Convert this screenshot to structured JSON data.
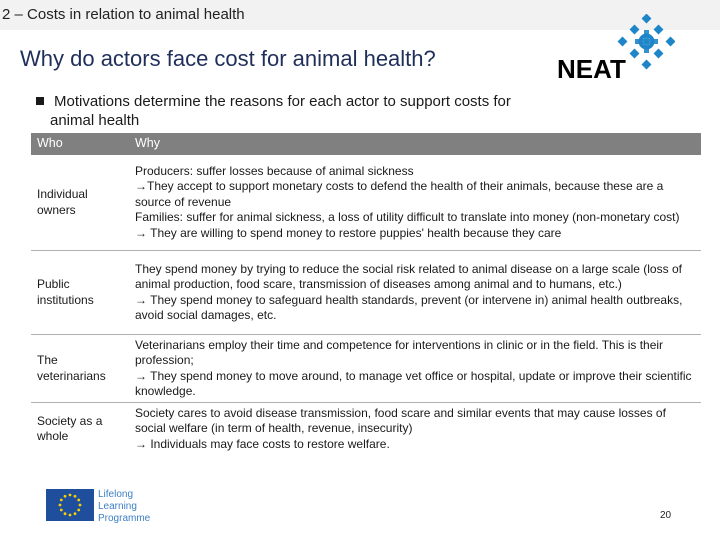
{
  "header": {
    "section": "2 – Costs in relation to animal health",
    "title": "Why do actors face cost for animal health?"
  },
  "logo": {
    "text": "NEAT",
    "color": "#1e86c8"
  },
  "bullet": {
    "line1": "Motivations determine the reasons for each actor to support costs for",
    "line2": "animal health"
  },
  "table": {
    "headers": [
      "Who",
      "Why"
    ],
    "rows": [
      {
        "who": "Individual owners",
        "why": [
          "Producers: suffer losses because of animal sickness",
          "→They accept to support monetary costs to defend the health of their animals, because these are a source of revenue",
          "Families: suffer for animal sickness, a loss of utility difficult to translate into money (non-monetary cost)",
          "→ They are willing to spend money to restore puppies' health because they care"
        ]
      },
      {
        "who": "Public institutions",
        "why": [
          "They spend money by trying to reduce the social risk related to animal disease on a large scale (loss of animal production, food scare, transmission of diseases among animal and to humans, etc.)",
          "→ They spend money to safeguard health standards, prevent (or intervene in) animal health outbreaks, avoid social damages, etc."
        ]
      },
      {
        "who": "The veterinarians",
        "why": [
          "Veterinarians employ their time and competence for interventions in clinic or in the field. This is their profession;",
          "→ They spend money to move around, to manage vet office or hospital, update or improve their scientific knowledge."
        ]
      },
      {
        "who": "Society as a whole",
        "why": [
          "Society cares to avoid disease transmission, food scare and similar events that may cause losses of social welfare (in term of health, revenue, insecurity)",
          "→ Individuals may face costs to restore welfare."
        ]
      }
    ]
  },
  "footer": {
    "programme_lines": [
      "Lifelong",
      "Learning",
      "Programme"
    ],
    "page": "20"
  }
}
